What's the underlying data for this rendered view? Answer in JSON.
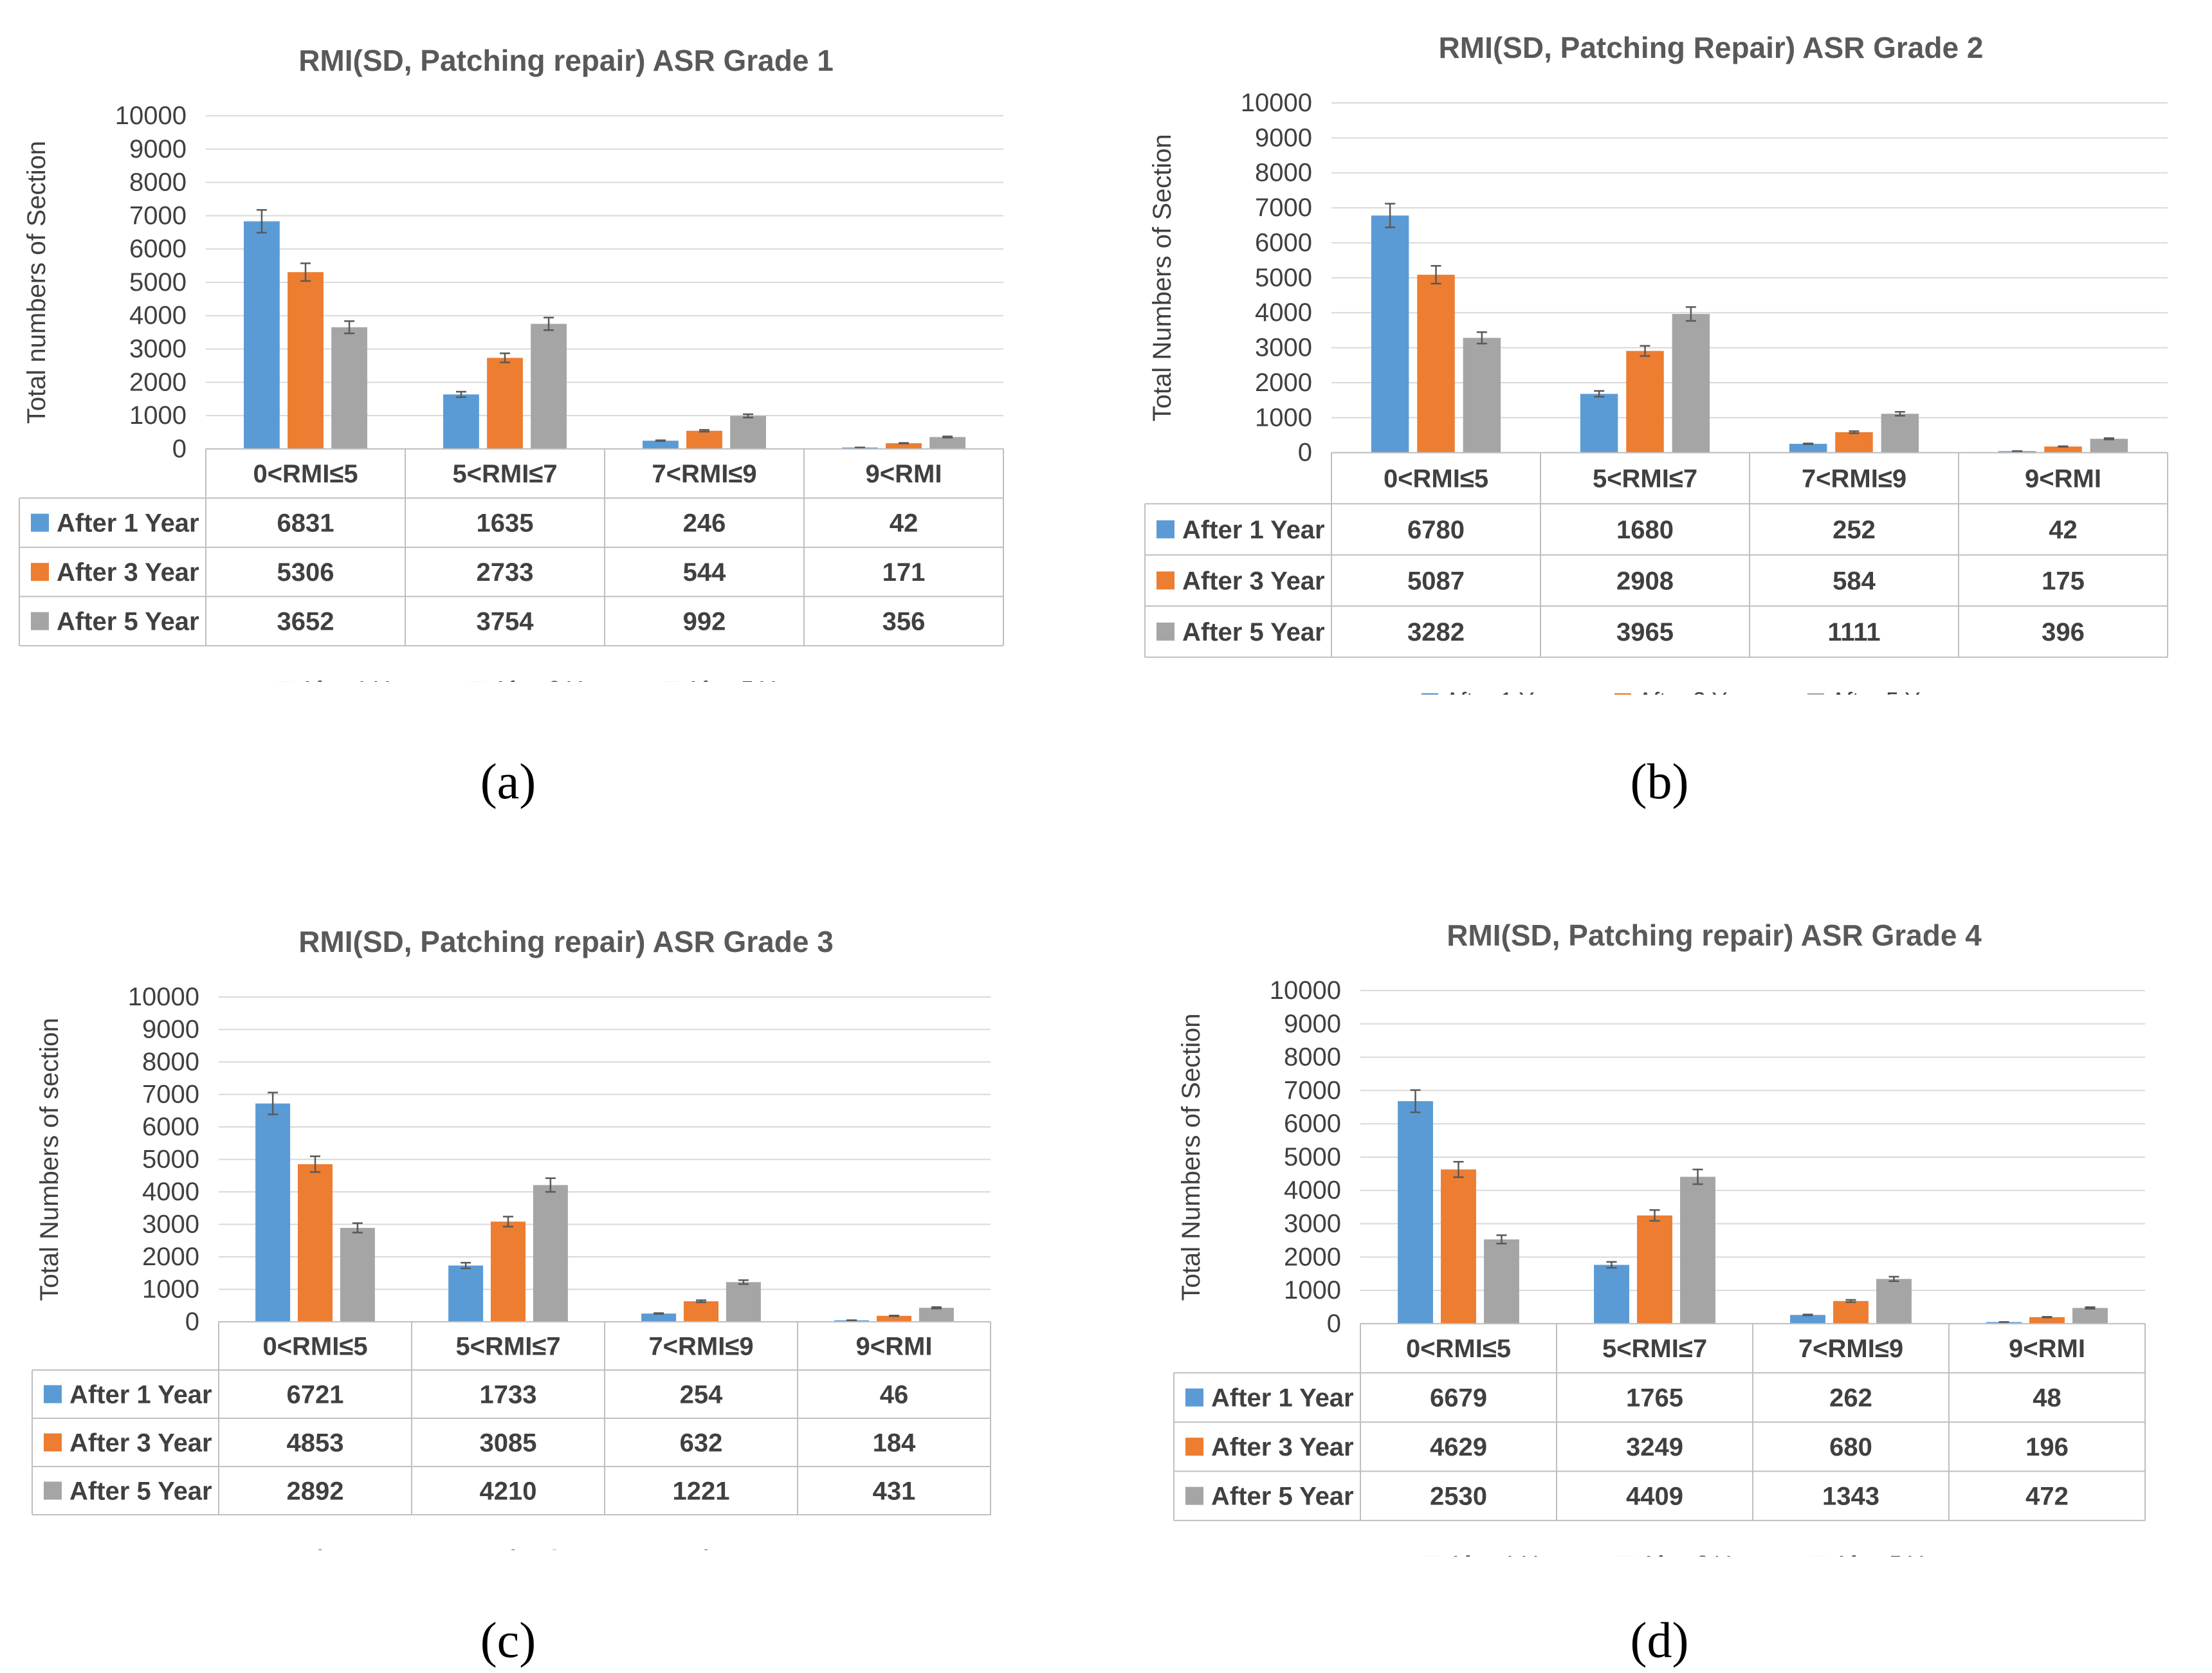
{
  "colors": {
    "s1": "#5B9BD5",
    "s2": "#ED7D31",
    "s3": "#A5A5A5",
    "grid": "#D9D9D9",
    "border": "#BFBFBF",
    "text": "#404040"
  },
  "charts": [
    {
      "caption": "(a)",
      "chart_data": {
        "type": "bar",
        "title": "RMI(SD, Patching repair) ASR Grade 1",
        "ylabel": "Total numbers of Section",
        "xlabel": "",
        "ylim": [
          0,
          10000
        ],
        "yticks": [
          "0",
          "1000",
          "2000",
          "3000",
          "4000",
          "5000",
          "6000",
          "7000",
          "8000",
          "9000",
          "10000"
        ],
        "categories": [
          "0<RMI≤5",
          "5<RMI≤7",
          "7<RMI≤9",
          "9<RMI"
        ],
        "series": [
          {
            "name": "After 1 Year",
            "values": [
              6831,
              1635,
              246,
              42
            ],
            "labels": [
              "6831",
              "1635",
              "246",
              "42"
            ]
          },
          {
            "name": "After 3 Year",
            "values": [
              5306,
              2733,
              544,
              171
            ],
            "labels": [
              "5306",
              "2733",
              "544",
              "171"
            ]
          },
          {
            "name": "After 5 Year",
            "values": [
              3652,
              3754,
              992,
              356
            ],
            "labels": [
              "3652",
              "3754",
              "992",
              "356"
            ]
          }
        ],
        "legend": "bottom",
        "data_table": true
      }
    },
    {
      "caption": "(b)",
      "chart_data": {
        "type": "bar",
        "title": "RMI(SD, Patching Repair) ASR Grade 2",
        "ylabel": "Total Numbers of Section",
        "xlabel": "",
        "ylim": [
          0,
          10000
        ],
        "yticks": [
          "0",
          "1000",
          "2000",
          "3000",
          "4000",
          "5000",
          "6000",
          "7000",
          "8000",
          "9000",
          "10000"
        ],
        "categories": [
          "0<RMI≤5",
          "5<RMI≤7",
          "7<RMI≤9",
          "9<RMI"
        ],
        "series": [
          {
            "name": "After 1 Year",
            "values": [
              6780,
              1680,
              252,
              42
            ],
            "labels": [
              "6780",
              "1680",
              "252",
              "42"
            ]
          },
          {
            "name": "After 3 Year",
            "values": [
              5087,
              2908,
              584,
              175
            ],
            "labels": [
              "5087",
              "2908",
              "584",
              "175"
            ]
          },
          {
            "name": "After 5 Year",
            "values": [
              3282,
              3965,
              1111,
              396
            ],
            "labels": [
              "3282",
              "3965",
              "1111",
              "396"
            ]
          }
        ],
        "legend": "bottom",
        "data_table": true
      }
    },
    {
      "caption": "(c)",
      "chart_data": {
        "type": "bar",
        "title": "RMI(SD, Patching repair) ASR Grade 3",
        "ylabel": "Total Numbers of section",
        "xlabel": "",
        "ylim": [
          0,
          10000
        ],
        "yticks": [
          "0",
          "1000",
          "2000",
          "3000",
          "4000",
          "5000",
          "6000",
          "7000",
          "8000",
          "9000",
          "10000"
        ],
        "categories": [
          "0<RMI≤5",
          "5<RMI≤7",
          "7<RMI≤9",
          "9<RMI"
        ],
        "series": [
          {
            "name": "After 1 Year",
            "values": [
              6721,
              1733,
              254,
              46
            ],
            "labels": [
              "6721",
              "1733",
              "254",
              "46"
            ]
          },
          {
            "name": "After 3 Year",
            "values": [
              4853,
              3085,
              632,
              184
            ],
            "labels": [
              "4853",
              "3085",
              "632",
              "184"
            ]
          },
          {
            "name": "After 5 Year",
            "values": [
              2892,
              4210,
              1221,
              431
            ],
            "labels": [
              "2892",
              "4210",
              "1221",
              "431"
            ]
          }
        ],
        "legend": "bottom",
        "data_table": true
      }
    },
    {
      "caption": "(d)",
      "chart_data": {
        "type": "bar",
        "title": "RMI(SD, Patching repair) ASR Grade 4",
        "ylabel": "Total Numbers of Section",
        "xlabel": "",
        "ylim": [
          0,
          10000
        ],
        "yticks": [
          "0",
          "1000",
          "2000",
          "3000",
          "4000",
          "5000",
          "6000",
          "7000",
          "8000",
          "9000",
          "10000"
        ],
        "categories": [
          "0<RMI≤5",
          "5<RMI≤7",
          "7<RMI≤9",
          "9<RMI"
        ],
        "series": [
          {
            "name": "After 1 Year",
            "values": [
              6679,
              1765,
              262,
              48
            ],
            "labels": [
              "6679",
              "1765",
              "262",
              "48"
            ]
          },
          {
            "name": "After 3 Year",
            "values": [
              4629,
              3249,
              680,
              196
            ],
            "labels": [
              "4629",
              "3249",
              "680",
              "196"
            ]
          },
          {
            "name": "After 5 Year",
            "values": [
              2530,
              4409,
              1343,
              472
            ],
            "labels": [
              "2530",
              "4409",
              "1343",
              "472"
            ]
          }
        ],
        "legend": "bottom",
        "data_table": true
      }
    }
  ]
}
